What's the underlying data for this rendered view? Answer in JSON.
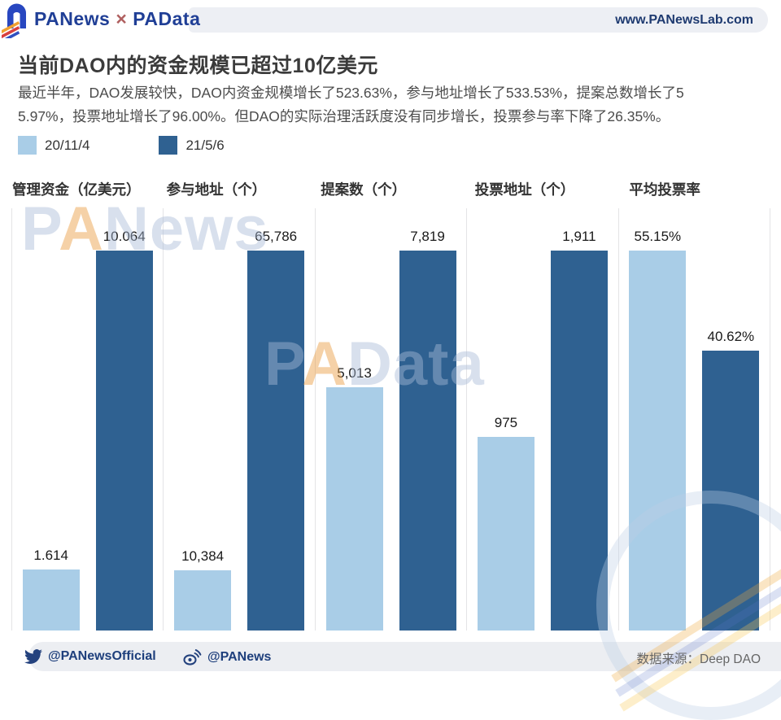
{
  "header": {
    "brand": "PANews",
    "separator": "×",
    "brand2": "PAData",
    "website": "www.PANewsLab.com"
  },
  "title": "当前DAO内的资金规模已超过10亿美元",
  "subtitle_lines": [
    "最近半年，DAO发展较快，DAO内资金规模增长了523.63%，参与地址增长了533.53%，提案总数增长了5",
    "5.97%，投票地址增长了96.00%。但DAO的实际治理活跃度没有同步增长，投票参与率下降了26.35%。"
  ],
  "legend": {
    "items": [
      {
        "label": "20/11/4",
        "color": "#a9cde7"
      },
      {
        "label": "21/5/6",
        "color": "#2f6191"
      }
    ]
  },
  "watermarks": {
    "top": "PANews",
    "center": "PAData"
  },
  "chart_data": {
    "type": "bar",
    "categories": [
      "20/11/4",
      "21/5/6"
    ],
    "series_colors": [
      "#a9cde7",
      "#2f6191"
    ],
    "legend_position": "top",
    "scaling": "each panel normalized to its own maximum bar",
    "panels": [
      {
        "title": "管理资金（亿美元）",
        "values": [
          1.614,
          10.064
        ],
        "labels": [
          "1.614",
          "10.064"
        ]
      },
      {
        "title": "参与地址（个）",
        "values": [
          10384,
          65786
        ],
        "labels": [
          "10,384",
          "65,786"
        ]
      },
      {
        "title": "提案数（个）",
        "values": [
          5013,
          7819
        ],
        "labels": [
          "5,013",
          "7,819"
        ]
      },
      {
        "title": "投票地址（个）",
        "values": [
          975,
          1911
        ],
        "labels": [
          "975",
          "1,911"
        ]
      },
      {
        "title": "平均投票率",
        "values": [
          55.15,
          40.62
        ],
        "labels": [
          "55.15%",
          "40.62%"
        ]
      }
    ]
  },
  "footer": {
    "twitter": "@PANewsOfficial",
    "weibo": "@PANews",
    "source": "数据来源：Deep DAO"
  }
}
